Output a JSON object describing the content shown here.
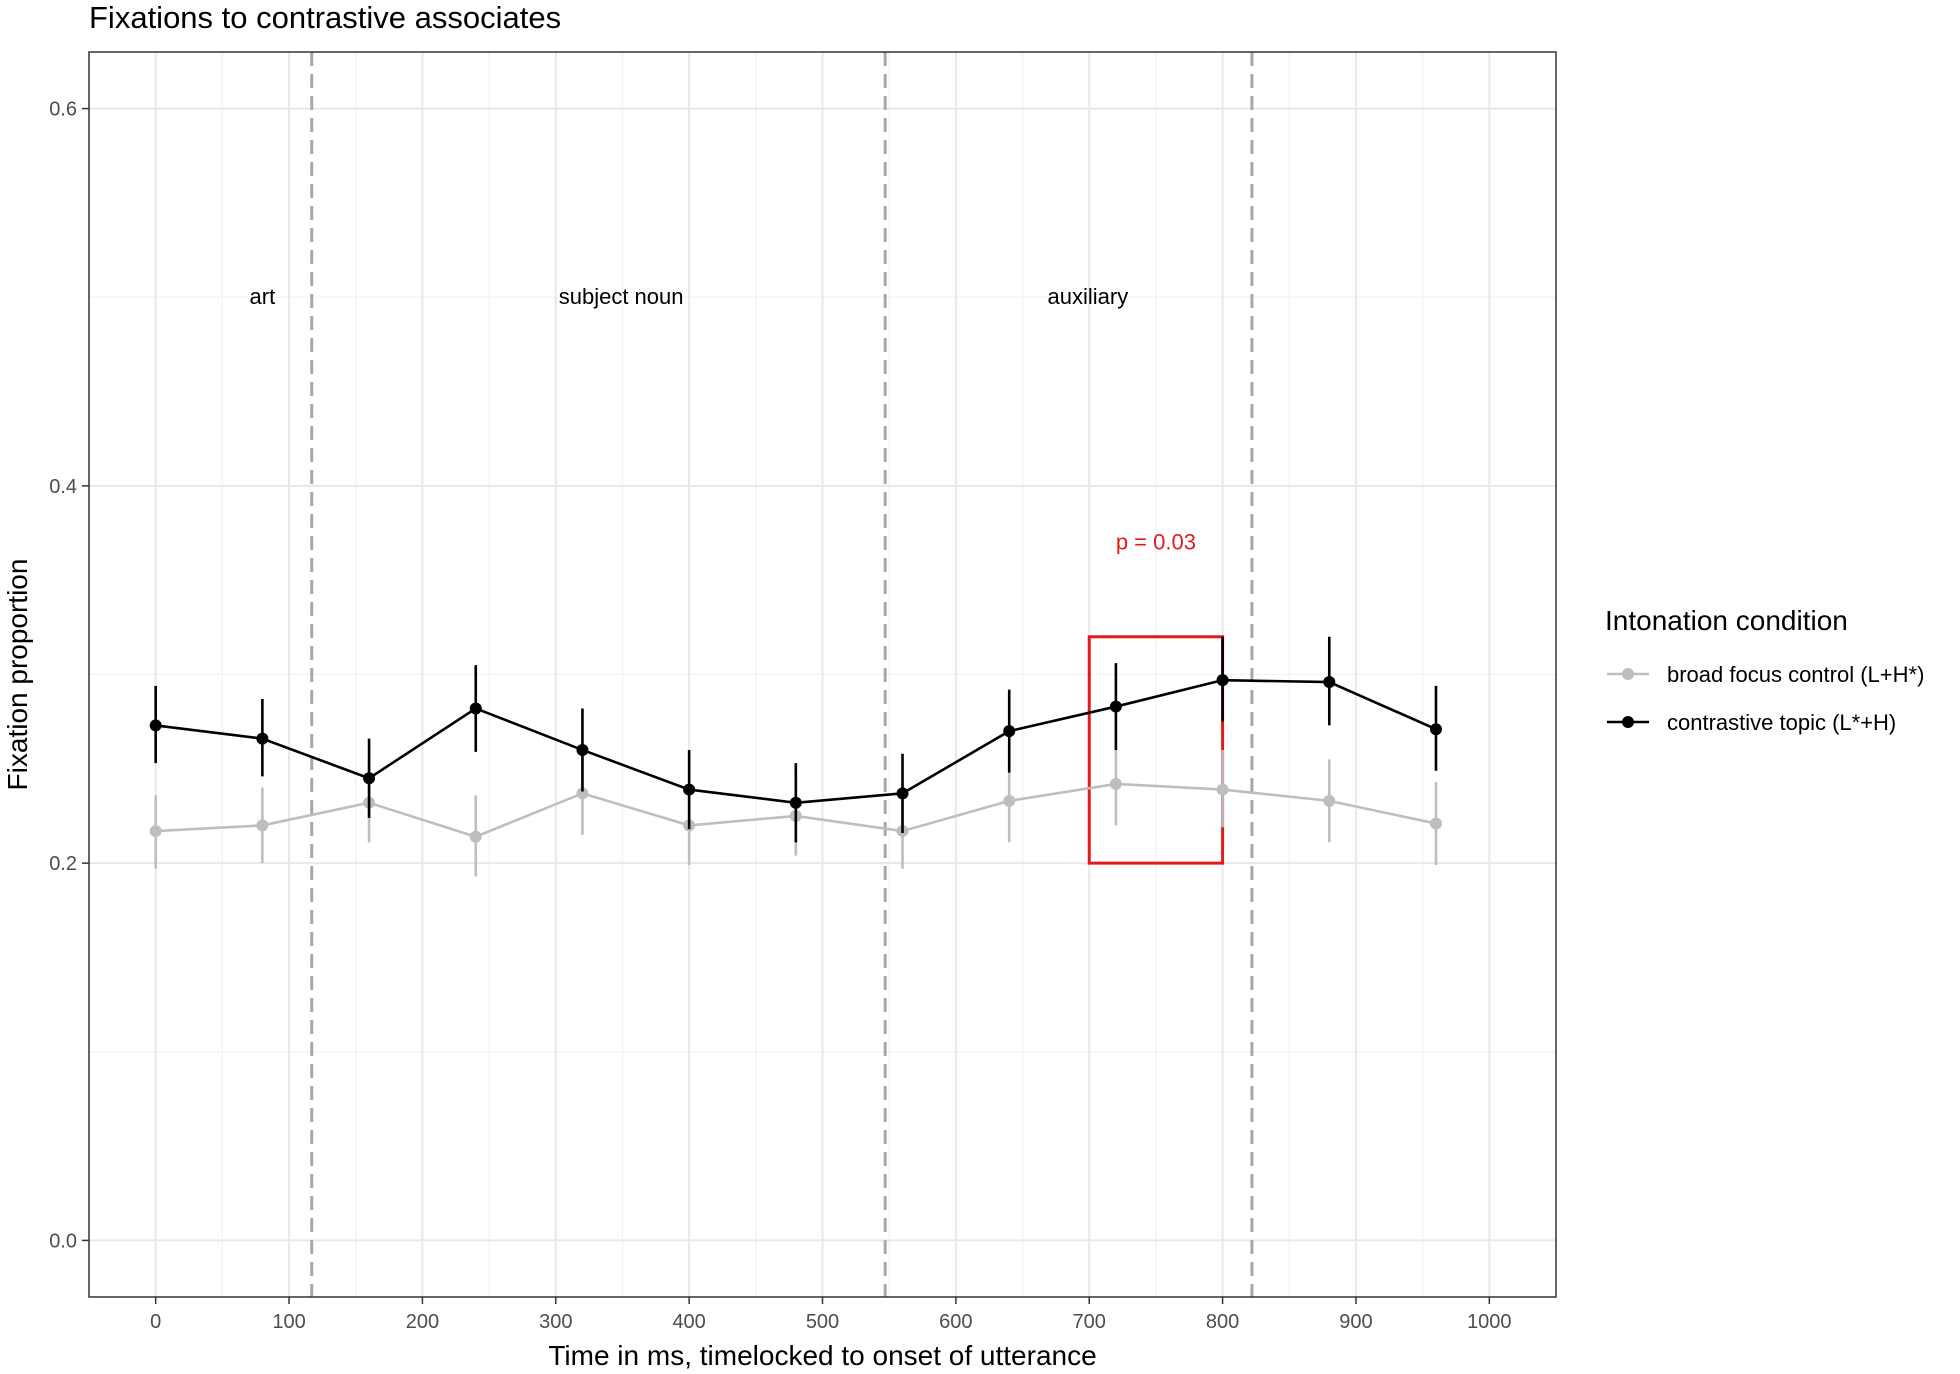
{
  "chart_data": {
    "type": "line",
    "title": "Fixations to contrastive associates",
    "xlabel": "Time in ms, timelocked to onset of utterance",
    "ylabel": "Fixation proportion",
    "xlim": [
      -50,
      1050
    ],
    "ylim": [
      -0.03,
      0.63
    ],
    "x_ticks": [
      0,
      100,
      200,
      300,
      400,
      500,
      600,
      700,
      800,
      900,
      1000
    ],
    "y_ticks": [
      0.0,
      0.2,
      0.4,
      0.6
    ],
    "y_tick_labels": [
      "0.0",
      "0.2",
      "0.4",
      "0.6"
    ],
    "grid": true,
    "legend": {
      "title": "Intonation condition",
      "position": "right"
    },
    "series": [
      {
        "name": "broad focus control (L+H*)",
        "color": "#bebebe",
        "x": [
          0,
          80,
          160,
          240,
          320,
          400,
          480,
          560,
          640,
          720,
          800,
          880,
          960
        ],
        "y": [
          0.217,
          0.22,
          0.232,
          0.214,
          0.237,
          0.22,
          0.225,
          0.217,
          0.233,
          0.242,
          0.239,
          0.233,
          0.221
        ],
        "error_low": [
          0.197,
          0.2,
          0.211,
          0.193,
          0.215,
          0.199,
          0.204,
          0.197,
          0.211,
          0.22,
          0.219,
          0.211,
          0.199
        ],
        "error_high": [
          0.236,
          0.24,
          0.253,
          0.236,
          0.258,
          0.241,
          0.246,
          0.237,
          0.255,
          0.263,
          0.26,
          0.255,
          0.243
        ]
      },
      {
        "name": "contrastive topic (L*+H)",
        "color": "#000000",
        "x": [
          0,
          80,
          160,
          240,
          320,
          400,
          480,
          560,
          640,
          720,
          800,
          880,
          960
        ],
        "y": [
          0.273,
          0.266,
          0.245,
          0.282,
          0.26,
          0.239,
          0.232,
          0.237,
          0.27,
          0.283,
          0.297,
          0.296,
          0.271
        ],
        "error_low": [
          0.253,
          0.246,
          0.224,
          0.259,
          0.238,
          0.218,
          0.211,
          0.216,
          0.248,
          0.26,
          0.275,
          0.273,
          0.249
        ],
        "error_high": [
          0.294,
          0.287,
          0.266,
          0.305,
          0.282,
          0.26,
          0.253,
          0.258,
          0.292,
          0.306,
          0.32,
          0.32,
          0.294
        ]
      }
    ],
    "vlines": [
      {
        "x": 117,
        "style": "dashed",
        "color": "#a8a8a8"
      },
      {
        "x": 547,
        "style": "dashed",
        "color": "#a8a8a8"
      },
      {
        "x": 822,
        "style": "dashed",
        "color": "#a8a8a8"
      }
    ],
    "annotations": [
      {
        "text": "art",
        "x": 80,
        "y": 0.5,
        "color": "#000000"
      },
      {
        "text": "subject noun",
        "x": 349,
        "y": 0.5,
        "color": "#000000"
      },
      {
        "text": "auxiliary",
        "x": 699,
        "y": 0.5,
        "color": "#000000"
      },
      {
        "text": "p = 0.03",
        "x": 750,
        "y": 0.37,
        "color": "#e31a1c"
      }
    ],
    "highlight_box": {
      "x0": 700,
      "x1": 800,
      "y0": 0.2,
      "y1": 0.32,
      "color": "#e31a1c"
    }
  }
}
